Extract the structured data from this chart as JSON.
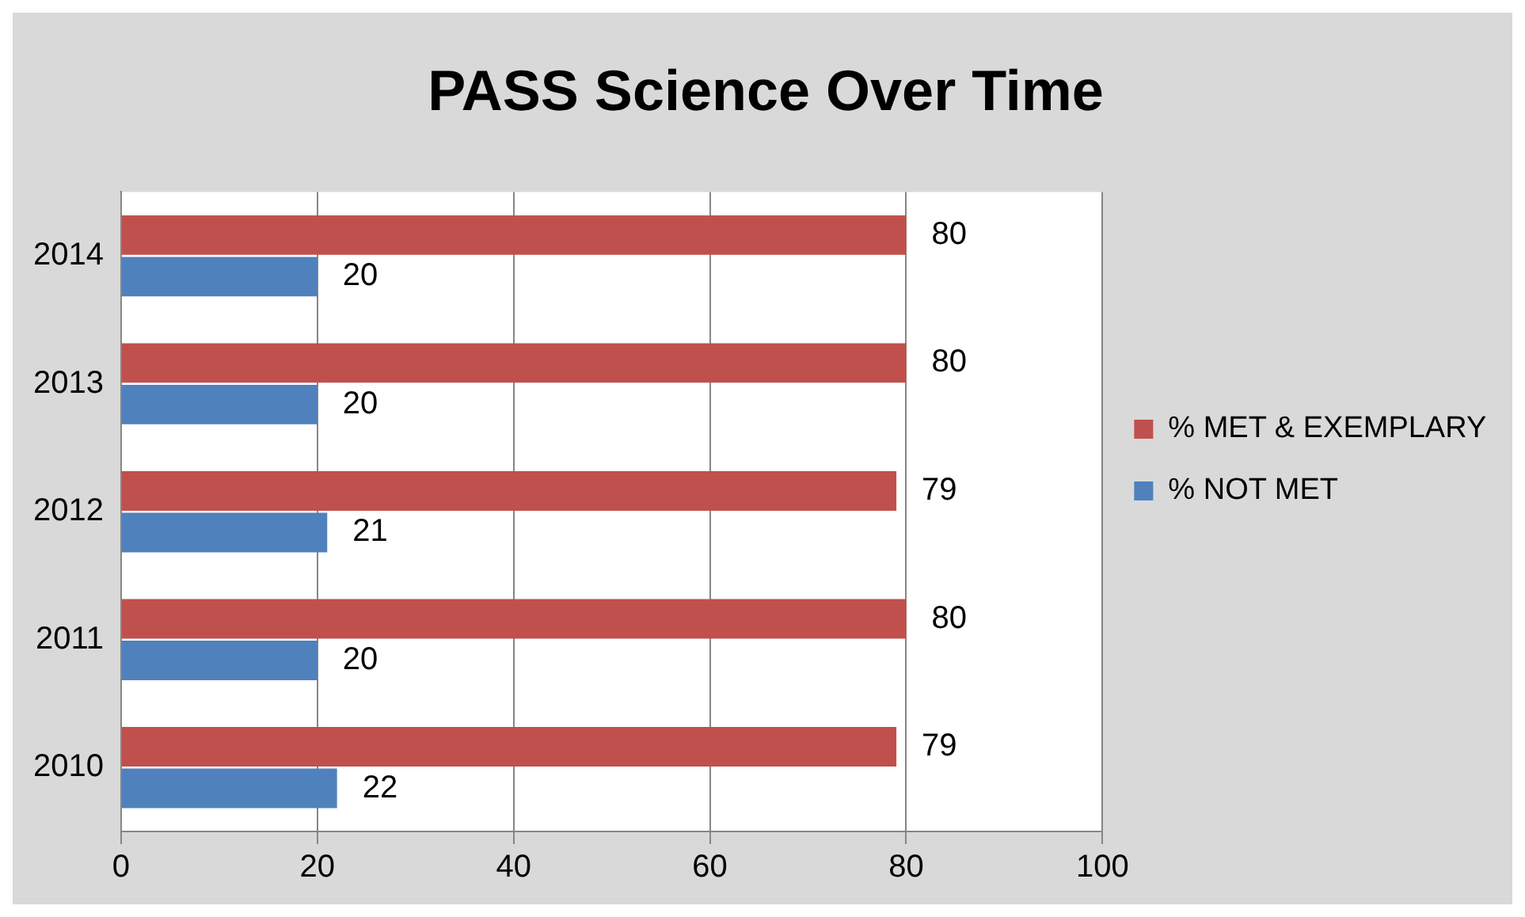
{
  "chart_data": {
    "type": "bar",
    "orientation": "horizontal",
    "title": "PASS Science Over Time",
    "categories": [
      "2014",
      "2013",
      "2012",
      "2011",
      "2010"
    ],
    "series": [
      {
        "name": "% MET & EXEMPLARY",
        "color": "#c0504d",
        "values": [
          80,
          80,
          79,
          80,
          79
        ]
      },
      {
        "name": "% NOT MET",
        "color": "#4f81bd",
        "values": [
          20,
          20,
          21,
          20,
          22
        ]
      }
    ],
    "xlim": [
      0,
      100
    ],
    "xticks": [
      0,
      20,
      40,
      60,
      80,
      100
    ],
    "grid": "x",
    "legend": "right",
    "data_labels": true
  }
}
